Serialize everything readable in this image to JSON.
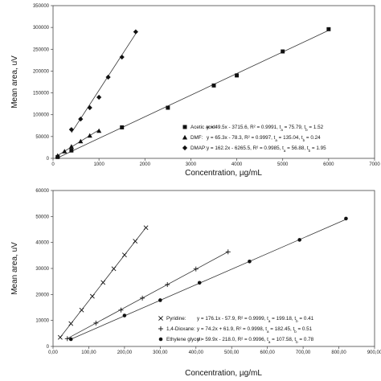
{
  "chart_data": [
    {
      "type": "scatter",
      "xlabel": "Concentration, µg/mL",
      "ylabel": "Mean area, uV",
      "xlim": [
        0,
        7000
      ],
      "ylim": [
        0,
        350000
      ],
      "xticks": [
        "0",
        "1000",
        "2000",
        "3000",
        "4000",
        "5000",
        "6000",
        "7000"
      ],
      "yticks": [
        "0",
        "50000",
        "100000",
        "150000",
        "200000",
        "250000",
        "300000",
        "350000"
      ],
      "grid": false,
      "legend_position": "bottom-right",
      "series": [
        {
          "name": "Acetic acid:",
          "marker": "square",
          "equation": "y = 49.5x - 3715.6, R² = 0.9991, t",
          "equation_a": " = 75.79, t",
          "equation_b": " = 1.52",
          "x": [
            100,
            400,
            1500,
            2500,
            3500,
            4000,
            5000,
            6000
          ],
          "y": [
            3000,
            18000,
            71000,
            116000,
            167000,
            190000,
            245000,
            296000
          ],
          "fit": {
            "slope": 49.5,
            "intercept": -3715.6
          }
        },
        {
          "name": "DMF:",
          "marker": "triangle",
          "equation": "y = 65.3x - 78.3, R² = 0.9997, t",
          "equation_a": " = 135.04, t",
          "equation_b": " = 0.24",
          "x": [
            100,
            250,
            400,
            600,
            800,
            1000
          ],
          "y": [
            6000,
            16000,
            27000,
            39000,
            52000,
            63000
          ],
          "fit": {
            "slope": 65.3,
            "intercept": -78.3
          }
        },
        {
          "name": "DMAP:",
          "marker": "diamond",
          "equation": "y = 162.2x - 6265.5, R² = 0.9985, t",
          "equation_a": " = 56.88, t",
          "equation_b": " = 1.95",
          "x": [
            400,
            600,
            800,
            1000,
            1200,
            1500,
            1800
          ],
          "y": [
            66000,
            90000,
            116000,
            140000,
            186000,
            232000,
            290000
          ],
          "fit": {
            "slope": 162.2,
            "intercept": -6265.5
          }
        }
      ]
    },
    {
      "type": "scatter",
      "xlabel": "Concentration, µg/mL",
      "ylabel": "Mean area, uV",
      "xlim": [
        0,
        900
      ],
      "ylim": [
        0,
        60000
      ],
      "xticks": [
        "0,00",
        "100,00",
        "200,00",
        "300,00",
        "400,00",
        "500,00",
        "600,00",
        "700,00",
        "800,00",
        "900,00"
      ],
      "yticks": [
        "0",
        "10000",
        "20000",
        "30000",
        "40000",
        "50000",
        "60000"
      ],
      "grid": false,
      "legend_position": "bottom-right",
      "series": [
        {
          "name": "Pyridine:",
          "marker": "x",
          "equation": "y = 176.1x - 57.9, R² = 0.9999, t",
          "equation_a": " = 199.18, t",
          "equation_b": " = 0.41",
          "x": [
            20,
            50,
            80,
            110,
            140,
            170,
            200,
            230,
            260
          ],
          "y": [
            3500,
            8800,
            14000,
            19300,
            24600,
            29900,
            35200,
            40500,
            45700
          ],
          "fit": {
            "slope": 176.1,
            "intercept": -57.9
          }
        },
        {
          "name": "1,4-Dioxane:",
          "marker": "plus",
          "equation": "y = 74.2x + 61.9, R² = 0.9998, t",
          "equation_a": " = 182.45, t",
          "equation_b": " = 0.51",
          "x": [
            40,
            120,
            190,
            250,
            320,
            400,
            490
          ],
          "y": [
            3000,
            9000,
            14000,
            18600,
            23800,
            29800,
            36400
          ],
          "fit": {
            "slope": 74.2,
            "intercept": 61.9
          }
        },
        {
          "name": "Ethylene glycol:",
          "marker": "circle",
          "equation": "y = 59.9x - 218.0, R² = 0.9996, t",
          "equation_a": " = 107.58, t",
          "equation_b": " = 0.78",
          "x": [
            50,
            200,
            300,
            410,
            550,
            690,
            820
          ],
          "y": [
            2800,
            11900,
            17800,
            24500,
            32700,
            41000,
            49200
          ],
          "fit": {
            "slope": 59.9,
            "intercept": -218.0
          }
        }
      ]
    }
  ],
  "subscripts": {
    "a": "a",
    "b": "b"
  }
}
